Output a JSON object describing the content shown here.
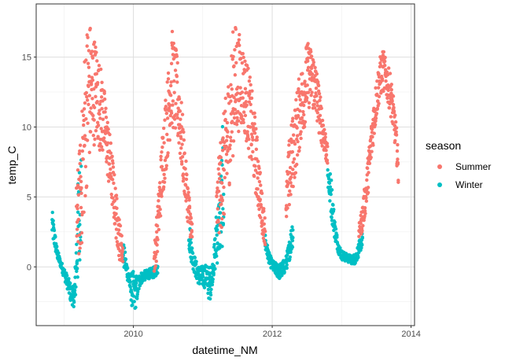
{
  "chart_data": {
    "type": "scatter",
    "title": "",
    "xlabel": "datetime_NM",
    "ylabel": "temp_C",
    "x_unit": "year",
    "xlim": [
      2008.6,
      2014.05
    ],
    "ylim": [
      -4.2,
      18.8
    ],
    "x_ticks": [
      2010,
      2012,
      2014
    ],
    "y_ticks": [
      0,
      5,
      10,
      15
    ],
    "grid": true,
    "legend": {
      "title": "season",
      "position": "right"
    },
    "colors": {
      "Summer": "#F8766D",
      "Winter": "#00BFC4"
    },
    "series": [
      {
        "name": "Winter",
        "color": "#00BFC4",
        "bands": [
          {
            "x": [
              2008.83,
              2008.9,
              2008.95,
              2009.0,
              2009.05,
              2009.1,
              2009.15,
              2009.2,
              2009.25
            ],
            "lo": [
              2.0,
              0.6,
              0.0,
              -0.8,
              -1.6,
              -2.6,
              -2.9,
              -1.5,
              2.0
            ],
            "hi": [
              4.1,
              1.4,
              0.5,
              0.0,
              -0.6,
              -1.2,
              -1.5,
              6.0,
              9.5
            ]
          },
          {
            "x": [
              2009.85,
              2009.9,
              2009.95,
              2010.0,
              2010.05,
              2010.1,
              2010.15,
              2010.2,
              2010.25,
              2010.3,
              2010.35
            ],
            "lo": [
              0.0,
              -0.6,
              -1.8,
              -3.7,
              -2.6,
              -1.3,
              -1.0,
              -0.9,
              -0.8,
              -0.8,
              -0.5
            ],
            "hi": [
              2.0,
              0.5,
              -0.5,
              -0.3,
              -0.6,
              -0.4,
              -0.3,
              -0.2,
              -0.1,
              0.0,
              0.3
            ]
          },
          {
            "x": [
              2010.8,
              2010.85,
              2010.9,
              2010.95,
              2011.0,
              2011.05,
              2011.1,
              2011.15,
              2011.2,
              2011.25,
              2011.3
            ],
            "lo": [
              1.2,
              0.0,
              -0.8,
              -1.4,
              -1.4,
              -1.6,
              -2.6,
              -0.8,
              0.0,
              1.0,
              1.5
            ],
            "hi": [
              3.8,
              1.4,
              0.5,
              0.0,
              0.1,
              0.2,
              0.0,
              0.5,
              4.5,
              5.5,
              12.1
            ]
          },
          {
            "x": [
              2011.9,
              2011.95,
              2012.0,
              2012.05,
              2012.1,
              2012.15,
              2012.2,
              2012.25,
              2012.3
            ],
            "lo": [
              1.0,
              0.3,
              -0.3,
              -0.6,
              -0.9,
              -0.7,
              -0.3,
              0.5,
              1.5
            ],
            "hi": [
              2.4,
              1.1,
              0.5,
              0.3,
              0.2,
              0.4,
              0.8,
              2.0,
              4.0
            ]
          },
          {
            "x": [
              2012.8,
              2012.85,
              2012.9,
              2012.95,
              2013.0,
              2013.05,
              2013.1,
              2013.15,
              2013.2,
              2013.25,
              2013.3
            ],
            "lo": [
              5.5,
              3.5,
              2.0,
              1.0,
              0.5,
              0.4,
              0.3,
              0.2,
              0.2,
              0.8,
              1.5
            ],
            "hi": [
              7.6,
              6.5,
              3.5,
              1.8,
              1.2,
              1.0,
              0.9,
              0.8,
              1.0,
              1.8,
              2.5
            ]
          }
        ]
      },
      {
        "name": "Summer",
        "color": "#F8766D",
        "bands": [
          {
            "x": [
              2009.18,
              2009.25,
              2009.3,
              2009.35,
              2009.4,
              2009.45,
              2009.5,
              2009.55,
              2009.6,
              2009.65,
              2009.7,
              2009.75,
              2009.8,
              2009.85
            ],
            "lo": [
              0.2,
              1.0,
              4.0,
              7.0,
              8.0,
              9.0,
              8.5,
              8.0,
              7.5,
              5.5,
              4.0,
              2.0,
              0.5,
              0.2
            ],
            "hi": [
              6.0,
              10.0,
              16.0,
              18.4,
              17.0,
              16.5,
              15.0,
              14.0,
              12.0,
              10.0,
              8.0,
              5.5,
              3.5,
              1.8
            ]
          },
          {
            "x": [
              2010.3,
              2010.35,
              2010.4,
              2010.45,
              2010.5,
              2010.55,
              2010.6,
              2010.65,
              2010.7,
              2010.75,
              2010.8,
              2010.85
            ],
            "lo": [
              -0.6,
              1.0,
              4.0,
              6.0,
              8.0,
              10.0,
              9.5,
              8.5,
              6.5,
              4.5,
              2.5,
              1.5
            ],
            "hi": [
              1.5,
              4.5,
              8.5,
              12.0,
              14.0,
              17.2,
              16.0,
              14.5,
              11.5,
              8.0,
              5.5,
              3.0
            ]
          },
          {
            "x": [
              2011.2,
              2011.25,
              2011.3,
              2011.35,
              2011.4,
              2011.45,
              2011.5,
              2011.55,
              2011.6,
              2011.65,
              2011.7,
              2011.75,
              2011.8,
              2011.85,
              2011.9
            ],
            "lo": [
              1.8,
              2.5,
              3.0,
              4.5,
              6.5,
              8.5,
              9.5,
              10.0,
              9.5,
              8.5,
              7.0,
              5.5,
              4.0,
              2.5,
              1.5
            ],
            "hi": [
              6.0,
              9.0,
              11.0,
              13.0,
              15.0,
              17.8,
              17.0,
              16.5,
              15.5,
              14.5,
              13.0,
              11.0,
              8.5,
              5.5,
              3.5
            ]
          },
          {
            "x": [
              2012.2,
              2012.25,
              2012.3,
              2012.35,
              2012.4,
              2012.45,
              2012.5,
              2012.55,
              2012.6,
              2012.65,
              2012.7,
              2012.75,
              2012.8
            ],
            "lo": [
              3.0,
              4.0,
              5.5,
              7.0,
              8.5,
              9.5,
              11.0,
              11.5,
              11.0,
              10.0,
              9.0,
              8.0,
              7.0
            ],
            "hi": [
              6.0,
              9.5,
              11.0,
              12.5,
              14.0,
              15.0,
              16.2,
              15.8,
              15.5,
              14.0,
              12.0,
              10.5,
              8.5
            ]
          },
          {
            "x": [
              2013.25,
              2013.3,
              2013.35,
              2013.4,
              2013.45,
              2013.5,
              2013.55,
              2013.6,
              2013.65,
              2013.7,
              2013.75,
              2013.8,
              2013.82
            ],
            "lo": [
              2.0,
              2.5,
              4.0,
              6.0,
              8.5,
              10.5,
              12.0,
              12.5,
              12.0,
              11.0,
              9.5,
              7.0,
              5.5
            ],
            "hi": [
              3.0,
              4.5,
              6.5,
              9.0,
              11.5,
              13.5,
              15.0,
              15.6,
              14.5,
              14.0,
              12.0,
              9.5,
              7.0
            ]
          }
        ]
      }
    ]
  }
}
